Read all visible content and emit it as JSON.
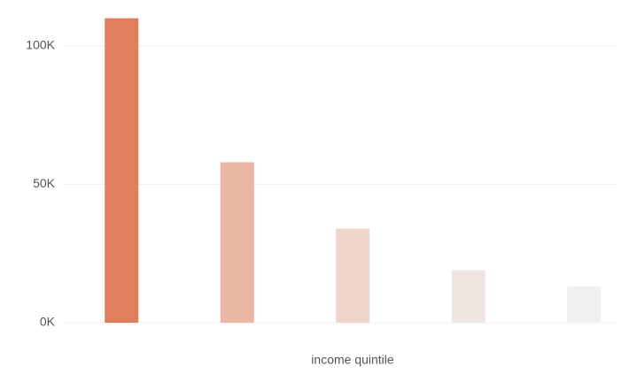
{
  "chart_data": {
    "type": "bar",
    "x_label": "income quintile",
    "categories": [
      null,
      null,
      null,
      null,
      null
    ],
    "values": [
      110000,
      58000,
      34000,
      19000,
      13000
    ],
    "colors": [
      "#e07e5e",
      "#ebb7a5",
      "#efd5cb",
      "#efe6e2",
      "#f0f0f0"
    ],
    "ylim": [
      0,
      115000
    ],
    "yticks": [
      {
        "value": 0,
        "label": "0K"
      },
      {
        "value": 50000,
        "label": "50K"
      },
      {
        "value": 100000,
        "label": "100K"
      }
    ],
    "grid": true
  }
}
